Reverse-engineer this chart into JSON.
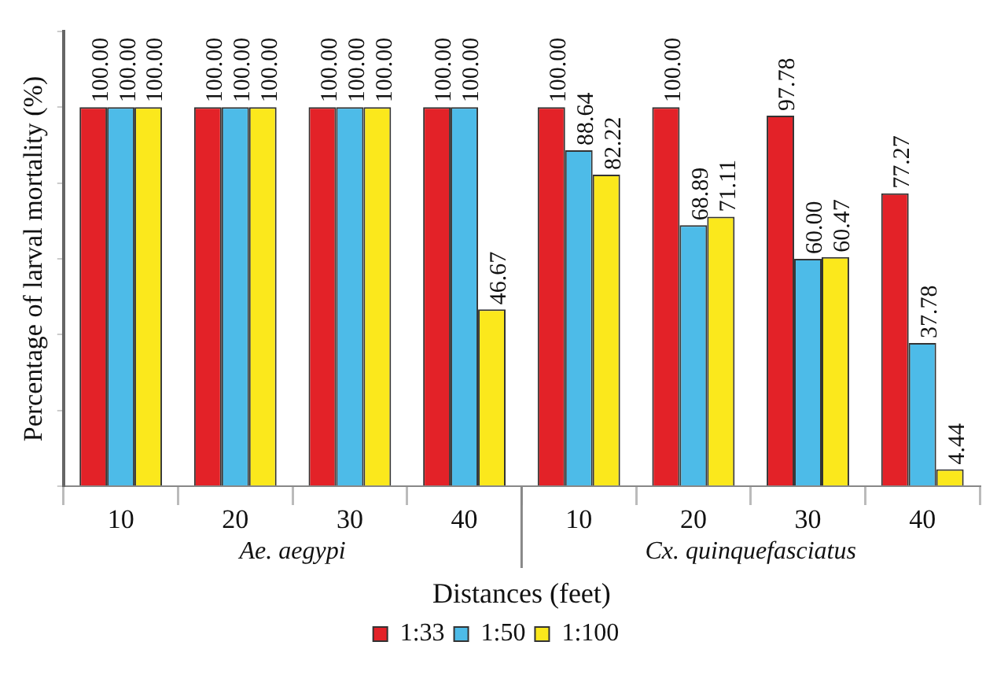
{
  "chart_data": {
    "type": "bar",
    "xlabel": "Distances (feet)",
    "ylabel": "Percentage of larval mortality (%)",
    "categories": [
      "10",
      "20",
      "30",
      "40",
      "10",
      "20",
      "30",
      "40"
    ],
    "annotations": [
      "Ae. aegypi",
      "Cx. quinquefasciatus"
    ],
    "series": [
      {
        "name": "1:33",
        "color": "#e32228",
        "values": [
          100.0,
          100.0,
          100.0,
          100.0,
          100.0,
          100.0,
          97.78,
          77.27
        ],
        "value_labels": [
          "100.00",
          "100.00",
          "100.00",
          "100.00",
          "100.00",
          "100.00",
          "97.78",
          "77.27"
        ]
      },
      {
        "name": "1:50",
        "color": "#4dbbe8",
        "values": [
          100.0,
          100.0,
          100.0,
          100.0,
          88.64,
          68.89,
          60.0,
          37.78
        ],
        "value_labels": [
          "100.00",
          "100.00",
          "100.00",
          "100.00",
          "88.64",
          "68.89",
          "60.00",
          "37.78"
        ]
      },
      {
        "name": "1:100",
        "color": "#fbe81c",
        "values": [
          100.0,
          100.0,
          100.0,
          46.67,
          82.22,
          71.11,
          60.47,
          4.44
        ],
        "value_labels": [
          "100.00",
          "100.00",
          "100.00",
          "46.67",
          "82.22",
          "71.11",
          "60.47",
          "4.44"
        ]
      }
    ],
    "ylim": [
      0,
      120
    ],
    "yticks": [
      {
        "value": 0,
        "label": null
      },
      {
        "value": 20,
        "label": null
      },
      {
        "value": 40,
        "label": null
      },
      {
        "value": 60,
        "label": null
      },
      {
        "value": 80,
        "label": null
      },
      {
        "value": 100,
        "label": null
      },
      {
        "value": 120,
        "label": null
      }
    ],
    "tick_labels": "x",
    "legend": "bottom",
    "grid": false
  }
}
